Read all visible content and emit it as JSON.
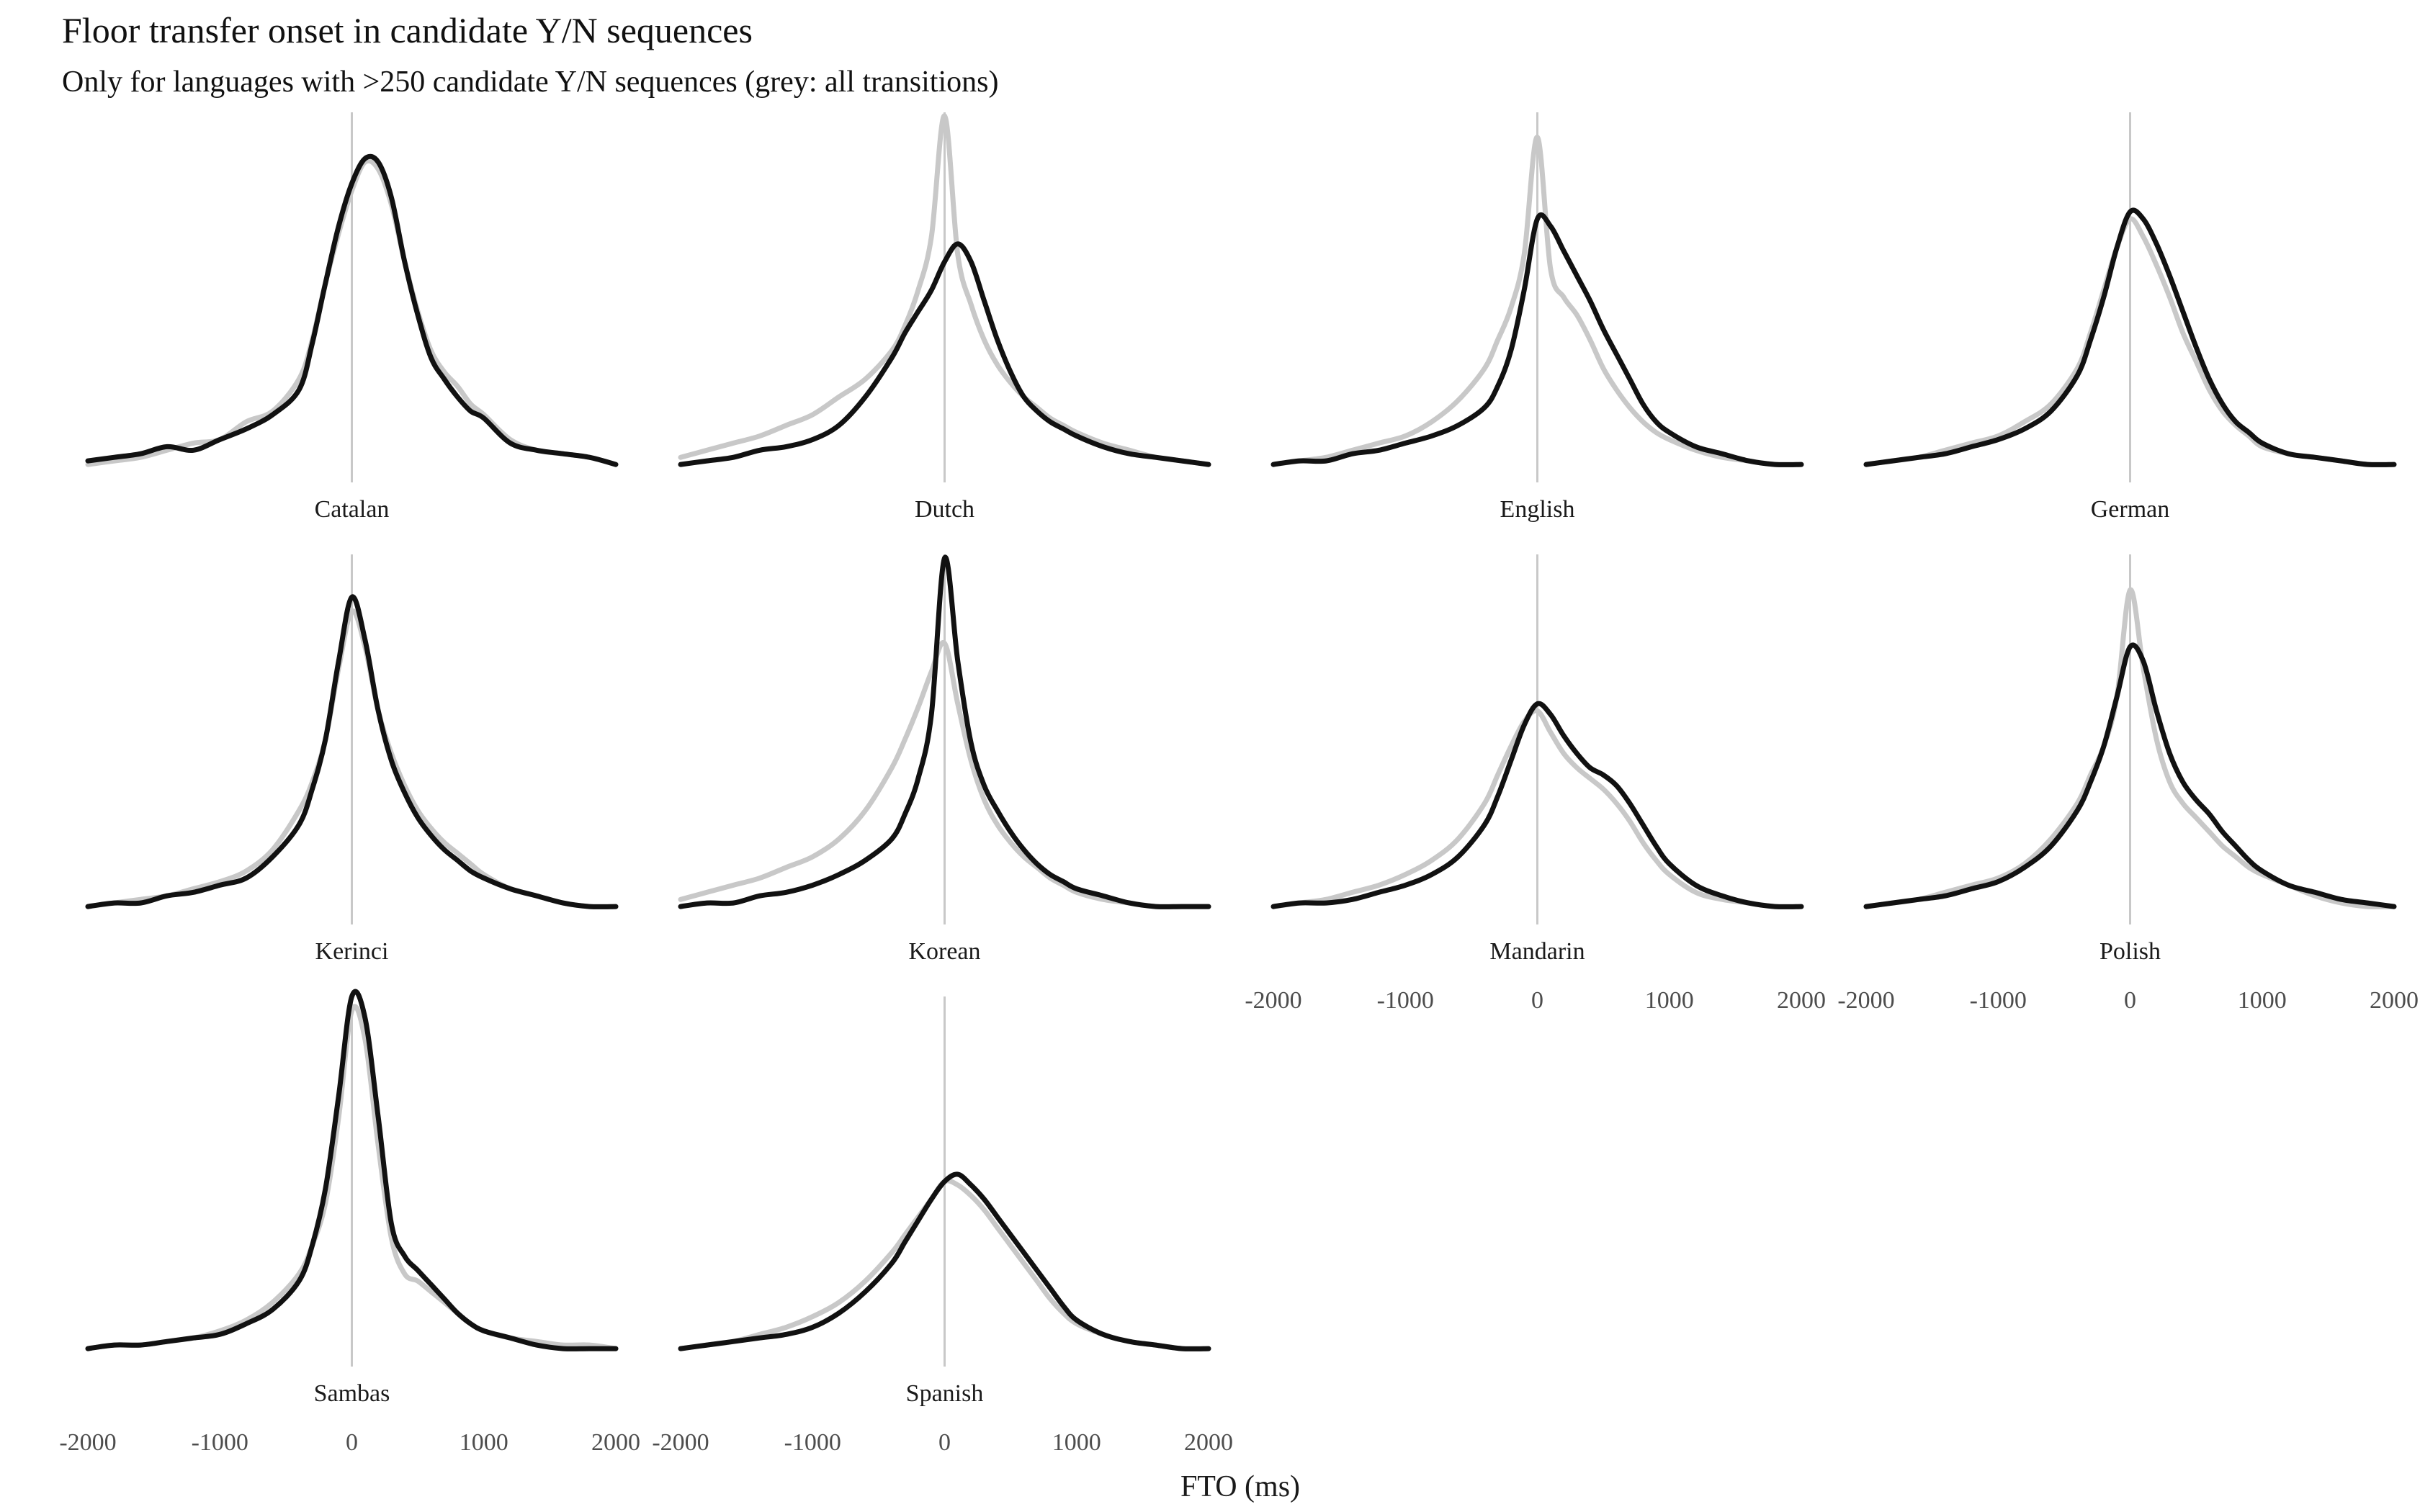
{
  "chart_data": {
    "type": "line",
    "title": "Floor transfer onset in candidate Y/N sequences",
    "subtitle": "Only for languages with >250 candidate Y/N sequences (grey: all transitions)",
    "xlabel": "FTO (ms)",
    "ylabel": "",
    "xlim": [
      -2000,
      2000
    ],
    "ylim": [
      0,
      1
    ],
    "x_ticks": [
      -2000,
      -1000,
      0,
      1000,
      2000
    ],
    "grid": false,
    "legend": "none",
    "reference_line_x": 0,
    "colors": {
      "candidate": "#111111",
      "all_transitions": "#c8c8c8",
      "zero_line": "#c8c8c8"
    },
    "x": [
      -2000,
      -1800,
      -1600,
      -1400,
      -1200,
      -1000,
      -800,
      -600,
      -400,
      -300,
      -200,
      -100,
      0,
      100,
      200,
      300,
      400,
      500,
      600,
      700,
      800,
      900,
      1000,
      1200,
      1400,
      1600,
      1800,
      2000
    ],
    "panels": [
      {
        "name": "Catalan",
        "series": [
          {
            "values": [
              0.01,
              0.02,
              0.03,
              0.05,
              0.07,
              0.08,
              0.13,
              0.16,
              0.25,
              0.36,
              0.52,
              0.66,
              0.78,
              0.86,
              0.84,
              0.74,
              0.58,
              0.44,
              0.33,
              0.27,
              0.23,
              0.18,
              0.15,
              0.08,
              0.05,
              0.04,
              0.03,
              0.01
            ]
          },
          {
            "values": [
              0.02,
              0.03,
              0.04,
              0.06,
              0.05,
              0.08,
              0.11,
              0.15,
              0.22,
              0.35,
              0.52,
              0.68,
              0.8,
              0.87,
              0.86,
              0.76,
              0.58,
              0.43,
              0.31,
              0.25,
              0.2,
              0.16,
              0.14,
              0.07,
              0.05,
              0.04,
              0.03,
              0.01
            ]
          }
        ]
      },
      {
        "name": "Dutch",
        "series": [
          {
            "values": [
              0.03,
              0.05,
              0.07,
              0.09,
              0.12,
              0.15,
              0.2,
              0.25,
              0.33,
              0.4,
              0.5,
              0.65,
              0.99,
              0.6,
              0.46,
              0.36,
              0.29,
              0.24,
              0.2,
              0.17,
              0.14,
              0.12,
              0.1,
              0.07,
              0.05,
              0.03,
              0.02,
              0.01
            ]
          },
          {
            "values": [
              0.01,
              0.02,
              0.03,
              0.05,
              0.06,
              0.08,
              0.12,
              0.2,
              0.31,
              0.38,
              0.44,
              0.5,
              0.58,
              0.63,
              0.58,
              0.47,
              0.36,
              0.27,
              0.2,
              0.16,
              0.13,
              0.11,
              0.09,
              0.06,
              0.04,
              0.03,
              0.02,
              0.01
            ]
          }
        ]
      },
      {
        "name": "English",
        "series": [
          {
            "values": [
              0.01,
              0.02,
              0.03,
              0.05,
              0.07,
              0.09,
              0.13,
              0.19,
              0.28,
              0.36,
              0.45,
              0.6,
              0.93,
              0.56,
              0.48,
              0.43,
              0.36,
              0.28,
              0.22,
              0.17,
              0.13,
              0.1,
              0.08,
              0.05,
              0.03,
              0.02,
              0.01,
              0.01
            ]
          },
          {
            "values": [
              0.01,
              0.02,
              0.02,
              0.04,
              0.05,
              0.07,
              0.09,
              0.12,
              0.17,
              0.23,
              0.33,
              0.5,
              0.7,
              0.68,
              0.61,
              0.54,
              0.47,
              0.39,
              0.32,
              0.25,
              0.18,
              0.13,
              0.1,
              0.06,
              0.04,
              0.02,
              0.01,
              0.01
            ]
          }
        ]
      },
      {
        "name": "German",
        "series": [
          {
            "values": [
              0.01,
              0.02,
              0.03,
              0.05,
              0.07,
              0.09,
              0.13,
              0.18,
              0.28,
              0.38,
              0.5,
              0.62,
              0.7,
              0.65,
              0.57,
              0.48,
              0.38,
              0.3,
              0.22,
              0.16,
              0.12,
              0.09,
              0.06,
              0.04,
              0.03,
              0.02,
              0.01,
              0.01
            ]
          },
          {
            "values": [
              0.01,
              0.02,
              0.03,
              0.04,
              0.06,
              0.08,
              0.11,
              0.16,
              0.26,
              0.36,
              0.48,
              0.62,
              0.72,
              0.7,
              0.63,
              0.54,
              0.44,
              0.34,
              0.25,
              0.18,
              0.13,
              0.1,
              0.07,
              0.04,
              0.03,
              0.02,
              0.01,
              0.01
            ]
          }
        ]
      },
      {
        "name": "Kerinci",
        "series": [
          {
            "values": [
              0.01,
              0.02,
              0.03,
              0.04,
              0.06,
              0.08,
              0.11,
              0.17,
              0.28,
              0.36,
              0.48,
              0.68,
              0.84,
              0.74,
              0.56,
              0.44,
              0.35,
              0.28,
              0.23,
              0.19,
              0.16,
              0.13,
              0.1,
              0.06,
              0.04,
              0.02,
              0.01,
              0.01
            ]
          },
          {
            "values": [
              0.01,
              0.02,
              0.02,
              0.04,
              0.05,
              0.07,
              0.09,
              0.15,
              0.24,
              0.34,
              0.48,
              0.7,
              0.88,
              0.76,
              0.56,
              0.42,
              0.33,
              0.26,
              0.21,
              0.17,
              0.14,
              0.11,
              0.09,
              0.06,
              0.04,
              0.02,
              0.01,
              0.01
            ]
          }
        ]
      },
      {
        "name": "Korean",
        "series": [
          {
            "values": [
              0.03,
              0.05,
              0.07,
              0.09,
              0.12,
              0.15,
              0.2,
              0.28,
              0.4,
              0.48,
              0.57,
              0.67,
              0.75,
              0.58,
              0.42,
              0.31,
              0.24,
              0.19,
              0.15,
              0.12,
              0.09,
              0.07,
              0.05,
              0.03,
              0.02,
              0.01,
              0.01,
              0.01
            ]
          },
          {
            "values": [
              0.01,
              0.02,
              0.02,
              0.04,
              0.05,
              0.07,
              0.1,
              0.14,
              0.2,
              0.27,
              0.37,
              0.55,
              0.99,
              0.7,
              0.47,
              0.35,
              0.28,
              0.22,
              0.17,
              0.13,
              0.1,
              0.08,
              0.06,
              0.04,
              0.02,
              0.01,
              0.01,
              0.01
            ]
          }
        ]
      },
      {
        "name": "Mandarin",
        "series": [
          {
            "values": [
              0.01,
              0.02,
              0.03,
              0.05,
              0.07,
              0.1,
              0.14,
              0.2,
              0.3,
              0.38,
              0.46,
              0.53,
              0.56,
              0.5,
              0.44,
              0.4,
              0.37,
              0.34,
              0.3,
              0.25,
              0.19,
              0.14,
              0.1,
              0.05,
              0.03,
              0.02,
              0.01,
              0.01
            ]
          },
          {
            "values": [
              0.01,
              0.02,
              0.02,
              0.03,
              0.05,
              0.07,
              0.1,
              0.15,
              0.24,
              0.32,
              0.42,
              0.52,
              0.58,
              0.55,
              0.49,
              0.44,
              0.4,
              0.38,
              0.35,
              0.3,
              0.24,
              0.18,
              0.13,
              0.07,
              0.04,
              0.02,
              0.01,
              0.01
            ]
          }
        ]
      },
      {
        "name": "Polish",
        "series": [
          {
            "values": [
              0.01,
              0.02,
              0.03,
              0.05,
              0.07,
              0.09,
              0.13,
              0.2,
              0.3,
              0.38,
              0.46,
              0.6,
              0.9,
              0.68,
              0.48,
              0.36,
              0.3,
              0.26,
              0.22,
              0.18,
              0.15,
              0.12,
              0.1,
              0.07,
              0.04,
              0.02,
              0.01,
              0.01
            ]
          },
          {
            "values": [
              0.01,
              0.02,
              0.03,
              0.04,
              0.06,
              0.08,
              0.12,
              0.18,
              0.28,
              0.36,
              0.46,
              0.6,
              0.74,
              0.7,
              0.56,
              0.44,
              0.36,
              0.31,
              0.27,
              0.22,
              0.18,
              0.14,
              0.11,
              0.07,
              0.05,
              0.03,
              0.02,
              0.01
            ]
          }
        ]
      },
      {
        "name": "Sambas",
        "series": [
          {
            "values": [
              0.01,
              0.02,
              0.02,
              0.03,
              0.04,
              0.06,
              0.09,
              0.14,
              0.22,
              0.3,
              0.42,
              0.66,
              0.96,
              0.88,
              0.58,
              0.32,
              0.22,
              0.2,
              0.17,
              0.14,
              0.11,
              0.08,
              0.06,
              0.04,
              0.03,
              0.02,
              0.02,
              0.01
            ]
          },
          {
            "values": [
              0.01,
              0.02,
              0.02,
              0.03,
              0.04,
              0.05,
              0.08,
              0.12,
              0.2,
              0.3,
              0.46,
              0.72,
              1.0,
              0.94,
              0.66,
              0.36,
              0.27,
              0.23,
              0.19,
              0.15,
              0.11,
              0.08,
              0.06,
              0.04,
              0.02,
              0.01,
              0.01,
              0.01
            ]
          }
        ]
      },
      {
        "name": "Spanish",
        "series": [
          {
            "values": [
              0.01,
              0.02,
              0.03,
              0.05,
              0.07,
              0.1,
              0.14,
              0.2,
              0.28,
              0.33,
              0.38,
              0.43,
              0.48,
              0.47,
              0.44,
              0.4,
              0.35,
              0.3,
              0.25,
              0.2,
              0.15,
              0.11,
              0.08,
              0.05,
              0.03,
              0.02,
              0.01,
              0.01
            ]
          },
          {
            "values": [
              0.01,
              0.02,
              0.03,
              0.04,
              0.05,
              0.07,
              0.11,
              0.17,
              0.25,
              0.31,
              0.37,
              0.43,
              0.48,
              0.5,
              0.47,
              0.43,
              0.38,
              0.33,
              0.28,
              0.23,
              0.18,
              0.13,
              0.09,
              0.05,
              0.03,
              0.02,
              0.01,
              0.01
            ]
          }
        ]
      }
    ]
  }
}
